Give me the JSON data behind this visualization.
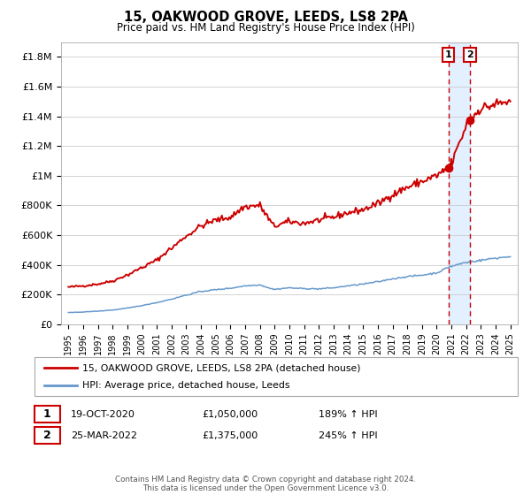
{
  "title": "15, OAKWOOD GROVE, LEEDS, LS8 2PA",
  "subtitle": "Price paid vs. HM Land Registry's House Price Index (HPI)",
  "ylabel_ticks": [
    "£0",
    "£200K",
    "£400K",
    "£600K",
    "£800K",
    "£1M",
    "£1.2M",
    "£1.4M",
    "£1.6M",
    "£1.8M"
  ],
  "ytick_values": [
    0,
    200000,
    400000,
    600000,
    800000,
    1000000,
    1200000,
    1400000,
    1600000,
    1800000
  ],
  "ylim": [
    0,
    1900000
  ],
  "xlim_start": 1994.5,
  "xlim_end": 2025.5,
  "legend_line1": "15, OAKWOOD GROVE, LEEDS, LS8 2PA (detached house)",
  "legend_line2": "HPI: Average price, detached house, Leeds",
  "line1_color": "#cc0000",
  "line2_color": "#6699cc",
  "point1_date_label": "19-OCT-2020",
  "point1_price_label": "£1,050,000",
  "point1_pct_label": "189% ↑ HPI",
  "point1_x": 2020.8,
  "point1_y": 1050000,
  "point2_date_label": "25-MAR-2022",
  "point2_price_label": "£1,375,000",
  "point2_pct_label": "245% ↑ HPI",
  "point2_x": 2022.25,
  "point2_y": 1375000,
  "shade_x_start": 2020.8,
  "shade_x_end": 2022.25,
  "footer": "Contains HM Land Registry data © Crown copyright and database right 2024.\nThis data is licensed under the Open Government Licence v3.0.",
  "background_color": "#ffffff",
  "grid_color": "#cccccc"
}
